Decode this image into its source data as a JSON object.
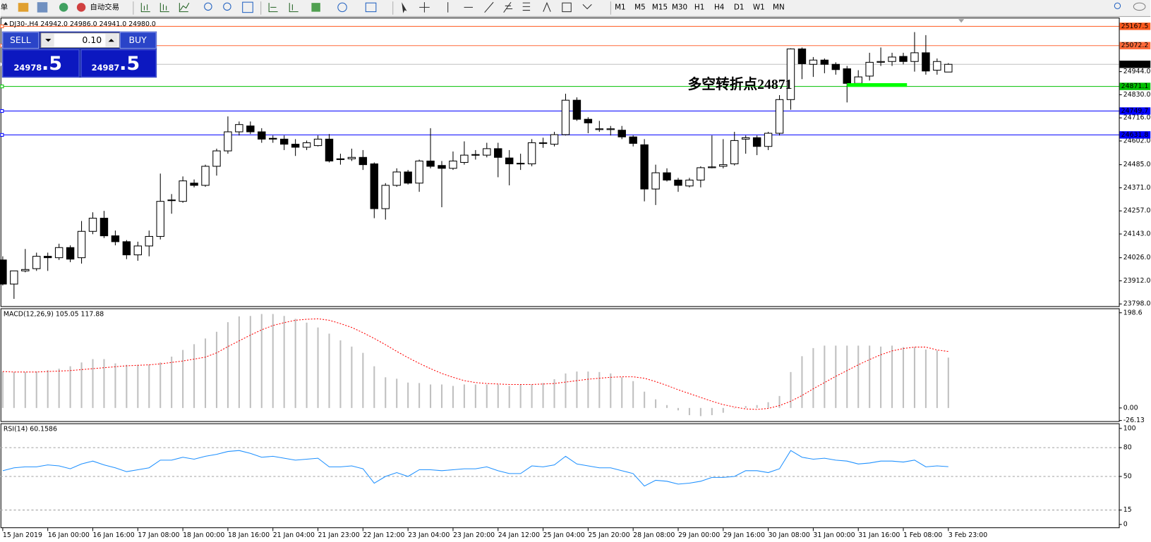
{
  "toolbar": {
    "menu_fragment": "单",
    "auto_trading": "自动交易",
    "timeframes": [
      "M1",
      "M5",
      "M15",
      "M30",
      "H1",
      "H4",
      "D1",
      "W1",
      "MN"
    ]
  },
  "trade_panel": {
    "sell": "SELL",
    "lot": "0.10",
    "buy": "BUY",
    "bid_main": "24978",
    "bid_fraction": ".5",
    "ask_main": "24987",
    "ask_fraction": ".5"
  },
  "chart_data": [
    {
      "type": "candlestick",
      "title": "DJ30-,H4  24942.0 24986.0 24941.0 24980.0",
      "categories": [
        "15 Jan 2019",
        null,
        null,
        null,
        "16 Jan 00:00",
        null,
        null,
        null,
        "16 Jan 16:00",
        null,
        null,
        null,
        "17 Jan 08:00",
        null,
        null,
        null,
        "18 Jan 00:00",
        null,
        null,
        null,
        "18 Jan 16:00",
        null,
        null,
        null,
        "21 Jan 04:00",
        null,
        null,
        null,
        "21 Jan 23:00",
        null,
        null,
        null,
        "22 Jan 12:00",
        null,
        null,
        null,
        "23 Jan 04:00",
        null,
        null,
        null,
        "23 Jan 20:00",
        null,
        null,
        null,
        "24 Jan 12:00",
        null,
        null,
        null,
        "25 Jan 04:00",
        null,
        null,
        null,
        "25 Jan 20:00",
        null,
        null,
        null,
        "28 Jan 08:00",
        null,
        null,
        null,
        "29 Jan 00:00",
        null,
        null,
        null,
        "29 Jan 16:00",
        null,
        null,
        null,
        "30 Jan 08:00",
        null,
        null,
        null,
        "31 Jan 00:00",
        null,
        null,
        null,
        "31 Jan 16:00",
        null,
        null,
        null,
        "1 Feb 08:00",
        null,
        null,
        null,
        "3 Feb 23:00"
      ],
      "open": [
        24015,
        23896,
        23961,
        23972,
        24033,
        24026,
        24076,
        24026,
        24156,
        24221,
        24134,
        24105,
        24040,
        24084,
        24131,
        24308,
        24304,
        24394,
        24383,
        24477,
        24553,
        24647,
        24676,
        24647,
        24615,
        24611,
        24586,
        24571,
        24579,
        24611,
        24514,
        24514,
        24521,
        24489,
        24268,
        24383,
        24449,
        24394,
        24503,
        24481,
        24467,
        24496,
        24532,
        24532,
        24564,
        24518,
        24489,
        24489,
        24593,
        24586,
        24633,
        24803,
        24709,
        24658,
        24658,
        24655,
        24622,
        24583,
        24365,
        24445,
        24409,
        24380,
        24409,
        24470,
        24477,
        24489,
        24611,
        24618,
        24575,
        24640,
        24806,
        25056,
        24980,
        25001,
        24980,
        24958,
        24886,
        24922,
        24990,
        24994,
        25019,
        24994,
        25037,
        24951,
        24942
      ],
      "high": [
        24033,
        23961,
        24069,
        24051,
        24051,
        24095,
        24087,
        24207,
        24250,
        24257,
        24160,
        24113,
        24105,
        24160,
        24441,
        24340,
        24427,
        24412,
        24485,
        24564,
        24723,
        24698,
        24698,
        24665,
        24629,
        24629,
        24611,
        24604,
        24629,
        24636,
        24539,
        24564,
        24557,
        24496,
        24394,
        24467,
        24459,
        24510,
        24665,
        24503,
        24550,
        24600,
        24557,
        24593,
        24593,
        24557,
        24539,
        24611,
        24618,
        24647,
        24835,
        24817,
        24719,
        24701,
        24676,
        24676,
        24629,
        24611,
        24485,
        24467,
        24420,
        24420,
        24477,
        24629,
        24611,
        24647,
        24629,
        24629,
        24647,
        24828,
        25059,
        25063,
        25016,
        25009,
        24990,
        24972,
        24951,
        25037,
        25063,
        25037,
        25037,
        25139,
        25124,
        25009,
        24986
      ],
      "low": [
        23889,
        23823,
        23954,
        23961,
        23961,
        24015,
        24004,
        23997,
        24142,
        24123,
        24087,
        24019,
        24011,
        24033,
        24116,
        24243,
        24297,
        24373,
        24376,
        24431,
        24539,
        24629,
        24636,
        24593,
        24593,
        24557,
        24528,
        24557,
        24575,
        24496,
        24485,
        24503,
        24459,
        24221,
        24214,
        24376,
        24387,
        24351,
        24467,
        24275,
        24459,
        24485,
        24510,
        24521,
        24423,
        24383,
        24459,
        24477,
        24568,
        24575,
        24629,
        24701,
        24640,
        24647,
        24629,
        24611,
        24575,
        24304,
        24286,
        24402,
        24351,
        24373,
        24373,
        24467,
        24467,
        24481,
        24539,
        24532,
        24557,
        24629,
        24756,
        24907,
        24918,
        24936,
        24929,
        24792,
        24871,
        24900,
        24972,
        24972,
        24980,
        24944,
        24929,
        24929,
        24941
      ],
      "close": [
        23896,
        23961,
        23968,
        24033,
        24026,
        24076,
        24019,
        24156,
        24221,
        24134,
        24105,
        24040,
        24084,
        24131,
        24304,
        24311,
        24405,
        24383,
        24477,
        24553,
        24647,
        24683,
        24647,
        24611,
        24611,
        24586,
        24571,
        24593,
        24611,
        24503,
        24510,
        24521,
        24485,
        24268,
        24383,
        24449,
        24394,
        24503,
        24477,
        24467,
        24503,
        24532,
        24535,
        24564,
        24521,
        24489,
        24492,
        24593,
        24590,
        24633,
        24803,
        24709,
        24691,
        24662,
        24662,
        24622,
        24590,
        24365,
        24445,
        24409,
        24383,
        24409,
        24470,
        24474,
        24485,
        24604,
        24618,
        24575,
        24640,
        24806,
        25056,
        24983,
        25001,
        24980,
        24954,
        24886,
        24918,
        24990,
        24994,
        25016,
        24994,
        25037,
        24947,
        24994,
        24980
      ],
      "up_color": "#ffffff",
      "down_color": "#000000",
      "ylim": [
        23787,
        25207
      ],
      "yticks": [
        {
          "value": 24944,
          "label": "24944.0"
        },
        {
          "value": 24830,
          "label": "24830.0"
        },
        {
          "value": 24716,
          "label": "24716.0"
        },
        {
          "value": 24602,
          "label": "24602.0"
        },
        {
          "value": 24485,
          "label": "24485.0"
        },
        {
          "value": 24371,
          "label": "24371.0"
        },
        {
          "value": 24257,
          "label": "24257.0"
        },
        {
          "value": 24143,
          "label": "24143.0"
        },
        {
          "value": 24026,
          "label": "24026.0"
        },
        {
          "value": 23912,
          "label": "23912.0"
        },
        {
          "value": 23798,
          "label": "23798.0"
        }
      ],
      "hlines": [
        {
          "value": 25167.5,
          "label": "25167.5",
          "color": "#ff5a1e",
          "tag": "#ff5a1e"
        },
        {
          "value": 25072.2,
          "label": "25072.2",
          "color": "#ff6a3a",
          "tag": "#ff6a3a"
        },
        {
          "value": 24980,
          "label": "24980.0",
          "color": "#c0c0c0",
          "tag": "#000000"
        },
        {
          "value": 24871.1,
          "label": "24871.1",
          "color": "#00c000",
          "tag": "#00c000"
        },
        {
          "value": 24749.7,
          "label": "24749.7",
          "color": "#0000ff",
          "tag": "#0000ff"
        },
        {
          "value": 24631.8,
          "label": "24631.8",
          "color": "#0000ff",
          "tag": "#0000ff"
        }
      ],
      "annotation": {
        "text": "多空转折点24871",
        "color": "#00ff00"
      },
      "marker": {
        "value": 24878,
        "from": 75,
        "to": 80,
        "color": "#00ff00"
      }
    },
    {
      "type": "macd",
      "title": "MACD(12,26,9) 105.05 117.88",
      "values": [
        76,
        75,
        75,
        76,
        79,
        82,
        87,
        95,
        102,
        102,
        93,
        90,
        90,
        90,
        95,
        107,
        121,
        133,
        145,
        159,
        179,
        191,
        192,
        196,
        196,
        192,
        186,
        178,
        168,
        155,
        141,
        128,
        115,
        87,
        64,
        61,
        53,
        52,
        49,
        49,
        46,
        49,
        49,
        49,
        49,
        46,
        49,
        49,
        52,
        60,
        72,
        76,
        76,
        75,
        72,
        64,
        56,
        34,
        18,
        6,
        -5,
        -15,
        -17,
        -15,
        -10,
        -1,
        4,
        6,
        12,
        25,
        75,
        108,
        125,
        130,
        130,
        130,
        130,
        130,
        128,
        130,
        127,
        127,
        122,
        120,
        105.05
      ],
      "signal": [
        76,
        75,
        75,
        75,
        76,
        77,
        78,
        80,
        82,
        84,
        86,
        88,
        89,
        90,
        92,
        95,
        98,
        102,
        106,
        115,
        128,
        140,
        152,
        163,
        172,
        178,
        183,
        185,
        186,
        183,
        176,
        168,
        157,
        145,
        132,
        118,
        105,
        93,
        82,
        72,
        64,
        57,
        53,
        51,
        50,
        49,
        49,
        49,
        50,
        51,
        54,
        57,
        60,
        62,
        64,
        65,
        65,
        62,
        55,
        47,
        38,
        30,
        22,
        14,
        7,
        2,
        -2,
        -3,
        -1,
        5,
        14,
        26,
        40,
        53,
        66,
        78,
        90,
        101,
        111,
        119,
        124,
        127,
        127,
        121,
        117.88
      ],
      "color": "#c0c0c0",
      "signal_color": "#ff0000",
      "ylim": [
        -27.5,
        207.8
      ],
      "yticks": [
        198.6,
        {
          "value": 0,
          "label": "0.00"
        },
        -26.13
      ]
    },
    {
      "type": "line",
      "title": "RSI(14) 60.1586",
      "values": [
        56,
        59,
        60,
        60,
        62,
        61,
        58,
        63,
        66,
        62,
        59,
        55,
        57,
        59,
        67,
        67,
        70,
        68,
        71,
        73,
        76,
        77,
        74,
        70,
        71,
        69,
        67,
        68,
        69,
        60,
        60,
        61,
        58,
        43,
        50,
        54,
        50,
        57,
        57,
        56,
        57,
        58,
        58,
        60,
        56,
        53,
        53,
        61,
        60,
        62,
        71,
        63,
        61,
        59,
        59,
        56,
        53,
        40,
        46,
        45,
        42,
        43,
        45,
        49,
        49,
        50,
        56,
        56,
        54,
        58,
        77,
        70,
        68,
        69,
        67,
        66,
        63,
        64,
        66,
        66,
        65,
        67,
        60,
        61,
        60.1586
      ],
      "color": "#1e90ff",
      "ylim": [
        -3,
        105.3
      ],
      "yticks": [
        100,
        80,
        50,
        15,
        0
      ],
      "levels": [
        80,
        50,
        15
      ]
    }
  ]
}
